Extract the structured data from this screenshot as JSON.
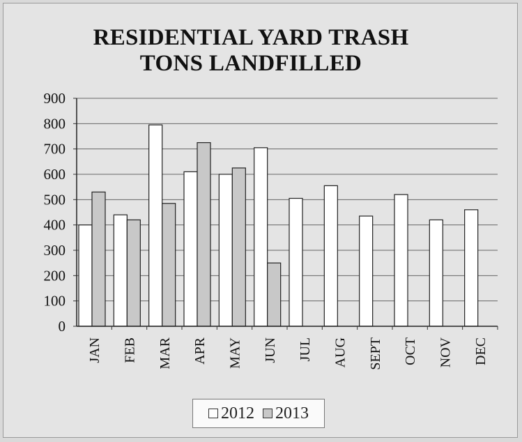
{
  "chart_data": {
    "type": "bar",
    "title_lines": [
      "RESIDENTIAL YARD TRASH",
      "TONS LANDFILLED"
    ],
    "categories": [
      "JAN",
      "FEB",
      "MAR",
      "APR",
      "MAY",
      "JUN",
      "JUL",
      "AUG",
      "SEPT",
      "OCT",
      "NOV",
      "DEC"
    ],
    "series": [
      {
        "name": "2012",
        "values": [
          400,
          440,
          795,
          610,
          600,
          705,
          505,
          555,
          435,
          520,
          420,
          460
        ],
        "color": "#ffffff"
      },
      {
        "name": "2013",
        "values": [
          530,
          420,
          485,
          725,
          625,
          250,
          null,
          null,
          null,
          null,
          null,
          null
        ],
        "color": "#c8c8c8"
      }
    ],
    "ylim": [
      0,
      900
    ],
    "yticks": [
      "0",
      "100",
      "200",
      "300",
      "400",
      "500",
      "600",
      "700",
      "800",
      "900"
    ],
    "grid": true,
    "legend_position": "bottom"
  }
}
